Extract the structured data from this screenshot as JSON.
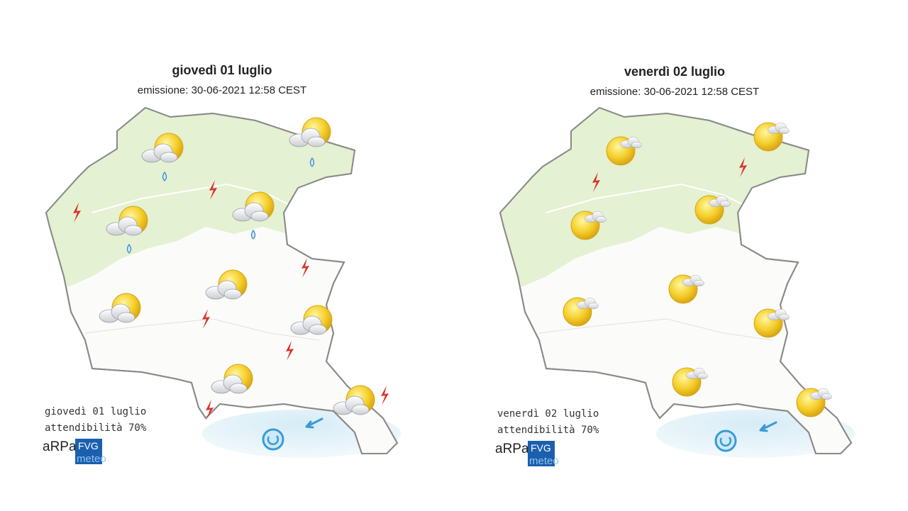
{
  "maps": [
    {
      "title": "giovedì 01 luglio",
      "issued": "emissione: 30-06-2021 12:58 CEST",
      "footer": {
        "day": "giovedì 01 luglio",
        "reliability": "attendibilità 70%"
      },
      "logo": {
        "arpa": "aRPa",
        "fvg": "FVG",
        "meteo": "meteo"
      }
    },
    {
      "title": "venerdì 02 luglio",
      "issued": "emissione: 30-06-2021 12:58 CEST",
      "footer": {
        "day": "venerdì 02 luglio",
        "reliability": "attendibilità 70%"
      },
      "logo": {
        "arpa": "aRPa",
        "fvg": "FVG",
        "meteo": "meteo"
      }
    }
  ]
}
